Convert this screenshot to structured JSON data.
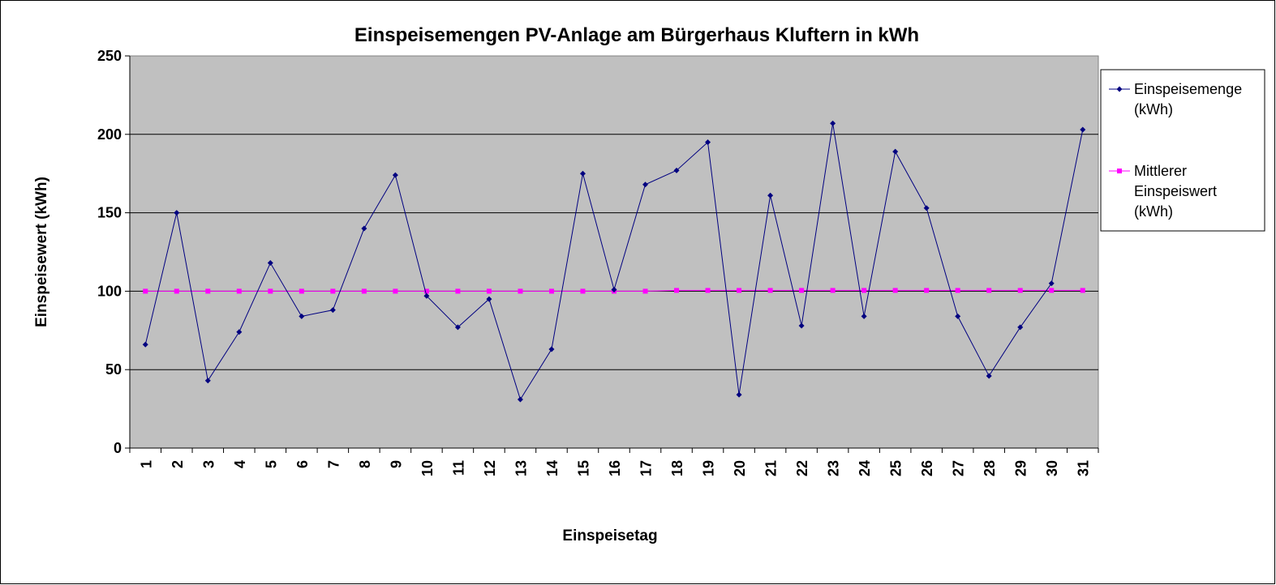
{
  "chart_data": {
    "type": "line",
    "title": "Einspeisemengen PV-Anlage am Bürgerhaus Kluftern in kWh",
    "xlabel": "Einspeisetag",
    "ylabel": "Einspeisewert (kWh)",
    "ylim": [
      0,
      250
    ],
    "yticks": [
      0,
      50,
      100,
      150,
      200,
      250
    ],
    "grid": true,
    "legend_position": "right",
    "plot_background": "#c0c0c0",
    "categories": [
      "1",
      "2",
      "3",
      "4",
      "5",
      "6",
      "7",
      "8",
      "9",
      "10",
      "11",
      "12",
      "13",
      "14",
      "15",
      "16",
      "17",
      "18",
      "19",
      "20",
      "21",
      "22",
      "23",
      "24",
      "25",
      "26",
      "27",
      "28",
      "29",
      "30",
      "31"
    ],
    "series": [
      {
        "name": "Einspeisemenge (kWh)",
        "legend_lines": [
          "Einspeisemenge",
          "(kWh)"
        ],
        "color": "#000080",
        "marker": "diamond",
        "values": [
          66,
          150,
          43,
          74,
          118,
          84,
          88,
          140,
          174,
          97,
          77,
          95,
          31,
          63,
          175,
          101,
          168,
          177,
          195,
          34,
          161,
          78,
          207,
          84,
          189,
          153,
          84,
          46,
          77,
          105,
          203
        ]
      },
      {
        "name": "Mittlerer Einspeiswert (kWh)",
        "legend_lines": [
          "Mittlerer",
          "Einspeiswert",
          "(kWh)"
        ],
        "color": "#ff00ff",
        "marker": "square",
        "values": [
          100,
          100,
          100,
          100,
          100,
          100,
          100,
          100,
          100,
          100,
          100,
          100,
          100,
          100,
          100,
          100,
          100,
          100.5,
          100.5,
          100.5,
          100.5,
          100.5,
          100.5,
          100.5,
          100.5,
          100.5,
          100.5,
          100.5,
          100.5,
          100.5,
          100.5
        ]
      }
    ]
  }
}
